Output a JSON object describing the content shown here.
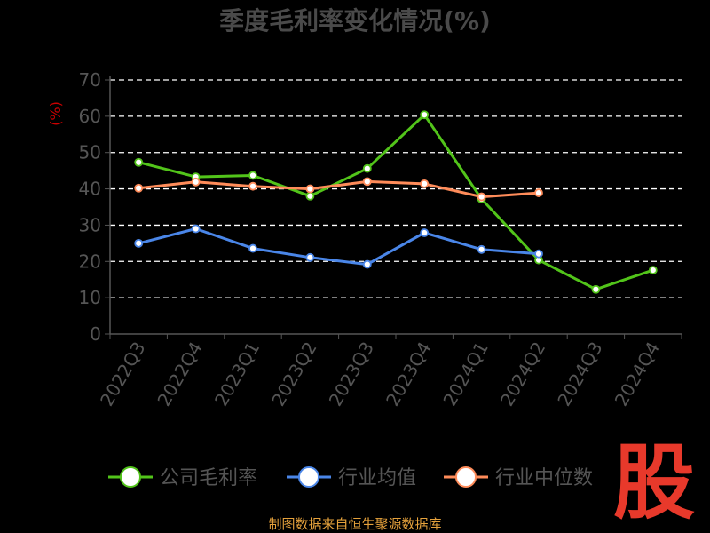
{
  "chart_data": {
    "type": "line",
    "title": "季度毛利率变化情况(%)",
    "ylabel": "(%)",
    "xlabel": "",
    "categories": [
      "2022Q3",
      "2022Q4",
      "2023Q1",
      "2023Q2",
      "2023Q3",
      "2023Q4",
      "2024Q1",
      "2024Q2",
      "2024Q3",
      "2024Q4"
    ],
    "ylim": [
      0,
      70
    ],
    "yticks": [
      0,
      10,
      20,
      30,
      40,
      50,
      60,
      70
    ],
    "grid": true,
    "legend_position": "bottom",
    "series": [
      {
        "name": "公司毛利率",
        "color": "#52c41a",
        "values": [
          47.3,
          43.3,
          43.7,
          38.0,
          45.6,
          60.4,
          37.2,
          20.4,
          12.3,
          17.6
        ]
      },
      {
        "name": "行业均值",
        "color": "#4a86e8",
        "values": [
          25.0,
          29.0,
          23.6,
          21.1,
          19.2,
          27.9,
          23.3,
          22.1,
          null,
          null
        ]
      },
      {
        "name": "行业中位数",
        "color": "#ff8c5a",
        "values": [
          40.2,
          41.9,
          40.7,
          40.0,
          42.0,
          41.4,
          37.8,
          38.9,
          null,
          null
        ]
      }
    ]
  },
  "footer": {
    "source": "制图数据来自恒生聚源数据库",
    "logo": "股"
  }
}
